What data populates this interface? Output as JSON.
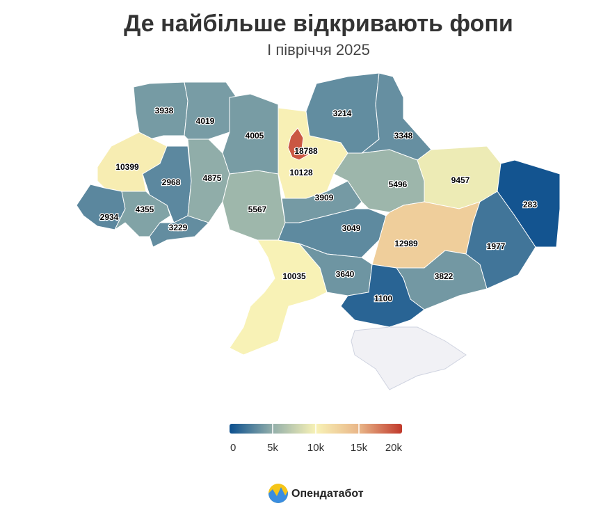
{
  "chart_data": {
    "type": "choropleth",
    "title": "Де найбільше відкривають фопи",
    "subtitle": "I півріччя 2025",
    "values": [
      3938,
      4019,
      4005,
      10128,
      18788,
      3214,
      3348,
      10399,
      2968,
      4875,
      5567,
      3909,
      5496,
      9457,
      283,
      2934,
      4355,
      3229,
      3049,
      12989,
      1977,
      10035,
      3640,
      3822,
      1100
    ],
    "colorscale": [
      "#0b4f8e",
      "#93afaa",
      "#f8f2b6",
      "#e9b688",
      "#c0392b"
    ],
    "colorlim": [
      0,
      20000
    ],
    "colorticks": [
      0,
      {
        "value": 5000,
        "label": "5k"
      },
      {
        "value": 10000,
        "label": "10k"
      },
      {
        "value": 15000,
        "label": "15k"
      },
      {
        "value": 20000,
        "label": "20k"
      }
    ],
    "missing_color": "#f1f1f5"
  },
  "footer": {
    "brand": "Опендатабот"
  }
}
